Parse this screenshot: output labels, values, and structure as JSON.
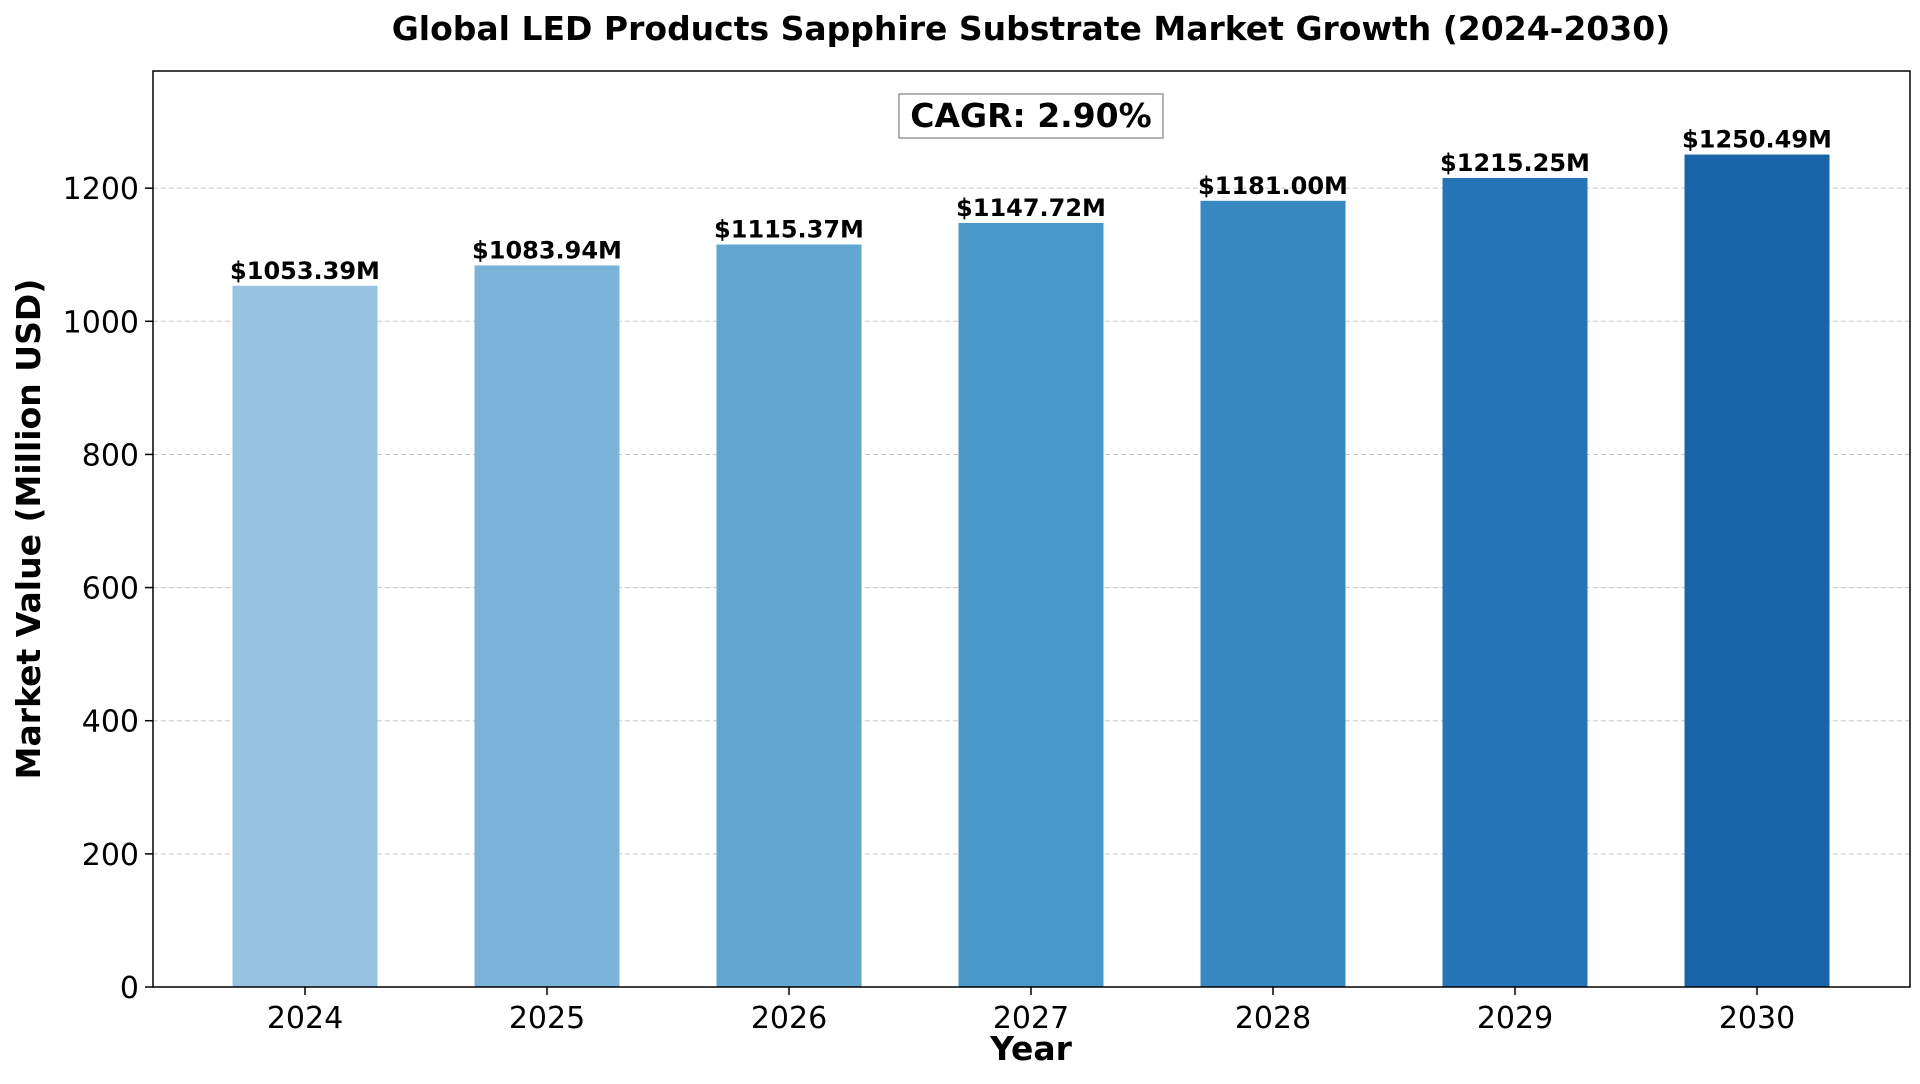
{
  "chart_data": {
    "type": "bar",
    "title": "Global LED Products Sapphire Substrate Market Growth (2024-2030)",
    "xlabel": "Year",
    "ylabel": "Market Value (Million USD)",
    "categories": [
      "2024",
      "2025",
      "2026",
      "2027",
      "2028",
      "2029",
      "2030"
    ],
    "values": [
      1053.39,
      1083.94,
      1115.37,
      1147.72,
      1181.0,
      1215.25,
      1250.49
    ],
    "value_labels": [
      "$1053.39M",
      "$1083.94M",
      "$1115.37M",
      "$1147.72M",
      "$1181.00M",
      "$1215.25M",
      "$1250.49M"
    ],
    "bar_colors": [
      "#96c3df",
      "#7ab4d8",
      "#61a7d1",
      "#4a98c9",
      "#3888c1",
      "#2574b6",
      "#1865a9"
    ],
    "ylim": [
      0,
      1376
    ],
    "yticks": [
      0,
      200,
      400,
      600,
      800,
      1000,
      1200
    ],
    "grid": "horizontal dashed",
    "annotation": "CAGR: 2.90%"
  }
}
